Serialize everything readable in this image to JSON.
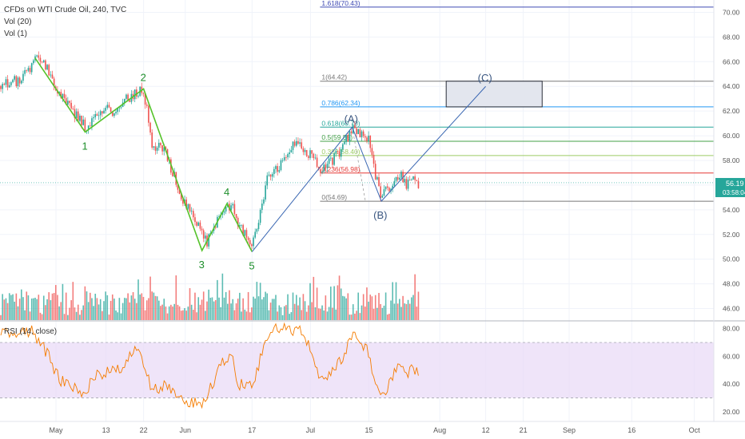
{
  "header": {
    "title": "CFDs on WTI Crude Oil, 240, TVC",
    "vol20": "Vol (20)",
    "vol1": "Vol (1)",
    "rsi_label": "RSI (14, close)"
  },
  "price_tag": {
    "value": "56.19",
    "timer": "03:58:04",
    "color": "#26a69a"
  },
  "chart_data": [
    {
      "type": "candlestick",
      "instrument": "CFDs on WTI Crude Oil",
      "interval": "240",
      "source": "TVC",
      "x_ticks": [
        "May",
        "13",
        "22",
        "Jun",
        "17",
        "Jul",
        "15",
        "Aug",
        "12",
        "21",
        "Sep",
        "16",
        "Oct"
      ],
      "y_ticks": [
        "46.00",
        "48.00",
        "50.00",
        "52.00",
        "54.00",
        "56.00",
        "58.00",
        "60.00",
        "62.00",
        "64.00",
        "66.00",
        "68.00",
        "70.00"
      ],
      "ylim": [
        45,
        71
      ],
      "last_price": 56.19,
      "close_path": [
        [
          "Apr 23",
          64.6
        ],
        [
          "Apr 25",
          65.7
        ],
        [
          "Apr 26",
          66.3
        ],
        [
          "Apr 29",
          65.4
        ],
        [
          "May 2",
          63.2
        ],
        [
          "May 6",
          61.6
        ],
        [
          "May 8",
          60.8
        ],
        [
          "May 10",
          61.4
        ],
        [
          "May 13",
          62.1
        ],
        [
          "May 15",
          62.0
        ],
        [
          "May 17",
          62.9
        ],
        [
          "May 20",
          63.4
        ],
        [
          "May 22",
          63.8
        ],
        [
          "May 23",
          61.6
        ],
        [
          "May 24",
          59.2
        ],
        [
          "May 27",
          58.9
        ],
        [
          "May 29",
          57.0
        ],
        [
          "May 31",
          55.1
        ],
        [
          "Jun 3",
          53.4
        ],
        [
          "Jun 5",
          52.2
        ],
        [
          "Jun 6",
          51.3
        ],
        [
          "Jun 10",
          53.9
        ],
        [
          "Jun 12",
          54.4
        ],
        [
          "Jun 13",
          53.6
        ],
        [
          "Jun 14",
          52.5
        ],
        [
          "Jun 17",
          51.4
        ],
        [
          "Jun 19",
          53.9
        ],
        [
          "Jun 21",
          56.9
        ],
        [
          "Jun 24",
          57.8
        ],
        [
          "Jun 26",
          59.0
        ],
        [
          "Jun 28",
          59.6
        ],
        [
          "Jul 2",
          58.0
        ],
        [
          "Jul 4",
          57.2
        ],
        [
          "Jul 8",
          58.7
        ],
        [
          "Jul 10",
          60.0
        ],
        [
          "Jul 11",
          60.7
        ],
        [
          "Jul 12",
          60.2
        ],
        [
          "Jul 15",
          59.9
        ],
        [
          "Jul 16",
          57.6
        ],
        [
          "Jul 17",
          56.3
        ],
        [
          "Jul 18",
          55.2
        ],
        [
          "Jul 19",
          55.7
        ],
        [
          "Jul 22",
          56.5
        ],
        [
          "Jul 23",
          56.7
        ],
        [
          "Jul 24",
          56.1
        ],
        [
          "Jul 25",
          56.6
        ],
        [
          "Jul 26",
          56.2
        ],
        [
          "Jul 27",
          56.19
        ]
      ],
      "elliott_wave": [
        {
          "label": "",
          "x": "Apr 26",
          "y": 66.3
        },
        {
          "label": "1",
          "x": "May 8",
          "y": 60.3
        },
        {
          "label": "2",
          "x": "May 22",
          "y": 63.8
        },
        {
          "label": "3",
          "x": "Jun 5",
          "y": 50.7
        },
        {
          "label": "4",
          "x": "Jun 11",
          "y": 54.5
        },
        {
          "label": "5",
          "x": "Jun 17",
          "y": 50.6
        }
      ],
      "abc_correction": [
        {
          "label": "",
          "x": "Jun 17",
          "y": 50.6
        },
        {
          "label": "(A)",
          "x": "Jul 11",
          "y": 60.7
        },
        {
          "label": "(B)",
          "x": "Jul 18",
          "y": 54.7
        },
        {
          "label": "(C)",
          "x": "Aug 12",
          "y": 64.0
        }
      ],
      "target_box": {
        "x_start": "Aug 1",
        "x_end": "Aug 24",
        "y_low": 62.34,
        "y_high": 64.42
      },
      "fibonacci": [
        {
          "ratio": "1.618",
          "value": "70.43",
          "label": "1.618(70.43)",
          "color": "#3f4ab3"
        },
        {
          "ratio": "1",
          "value": "64.42",
          "label": "1(64.42)",
          "color": "#787878"
        },
        {
          "ratio": "0.786",
          "value": "62.34",
          "label": "0.786(62.34)",
          "color": "#2196f3"
        },
        {
          "ratio": "0.618",
          "value": "60.70",
          "label": "0.618(60.70)",
          "color": "#26a69a"
        },
        {
          "ratio": "0.5",
          "value": "59.55",
          "label": "0.5(59.55)",
          "color": "#43a047"
        },
        {
          "ratio": "0.382",
          "value": "58.40",
          "label": "0.382(58.40)",
          "color": "#9ccc65"
        },
        {
          "ratio": "0.236",
          "value": "56.98",
          "label": "0.236(56.98)",
          "color": "#e53935"
        },
        {
          "ratio": "0",
          "value": "54.69",
          "label": "0(54.69)",
          "color": "#787878"
        }
      ],
      "colors": {
        "up": "#26a69a",
        "down": "#ef5350",
        "wave": "#55c22a",
        "abc": "#3a67b2",
        "wave_label": "#1e8f2b",
        "abc_label": "#3a5680"
      }
    },
    {
      "type": "line",
      "name": "RSI (14, close)",
      "y_ticks": [
        "20.00",
        "40.00",
        "60.00",
        "80.00"
      ],
      "ylim": [
        13,
        85
      ],
      "band": [
        30,
        70
      ],
      "color": "#f57c00",
      "band_color": "#e8d9f7",
      "points": [
        [
          "Apr 23",
          76
        ],
        [
          "Apr 25",
          79
        ],
        [
          "Apr 26",
          74
        ],
        [
          "Apr 29",
          62
        ],
        [
          "May 2",
          42
        ],
        [
          "May 6",
          38
        ],
        [
          "May 8",
          33
        ],
        [
          "May 10",
          45
        ],
        [
          "May 13",
          48
        ],
        [
          "May 15",
          50
        ],
        [
          "May 17",
          53
        ],
        [
          "May 20",
          64
        ],
        [
          "May 21",
          63
        ],
        [
          "May 23",
          44
        ],
        [
          "May 24",
          35
        ],
        [
          "May 27",
          40
        ],
        [
          "May 29",
          33
        ],
        [
          "May 31",
          29
        ],
        [
          "Jun 3",
          27
        ],
        [
          "Jun 4",
          23
        ],
        [
          "Jun 6",
          32
        ],
        [
          "Jun 10",
          55
        ],
        [
          "Jun 12",
          62
        ],
        [
          "Jun 13",
          46
        ],
        [
          "Jun 14",
          40
        ],
        [
          "Jun 17",
          38
        ],
        [
          "Jun 19",
          58
        ],
        [
          "Jun 21",
          75
        ],
        [
          "Jun 24",
          82
        ],
        [
          "Jun 26",
          79
        ],
        [
          "Jun 28",
          80
        ],
        [
          "Jul 1",
          66
        ],
        [
          "Jul 3",
          47
        ],
        [
          "Jul 5",
          44
        ],
        [
          "Jul 8",
          55
        ],
        [
          "Jul 10",
          68
        ],
        [
          "Jul 11",
          78
        ],
        [
          "Jul 12",
          73
        ],
        [
          "Jul 15",
          63
        ],
        [
          "Jul 16",
          44
        ],
        [
          "Jul 17",
          35
        ],
        [
          "Jul 18",
          29
        ],
        [
          "Jul 19",
          36
        ],
        [
          "Jul 22",
          52
        ],
        [
          "Jul 23",
          58
        ],
        [
          "Jul 24",
          44
        ],
        [
          "Jul 25",
          54
        ],
        [
          "Jul 26",
          47
        ],
        [
          "Jul 27",
          48
        ]
      ]
    },
    {
      "type": "bar",
      "name": "Vol (20)",
      "color_up": "#26a69a",
      "color_down": "#ef5350",
      "note": "volume histogram, relative heights"
    }
  ]
}
